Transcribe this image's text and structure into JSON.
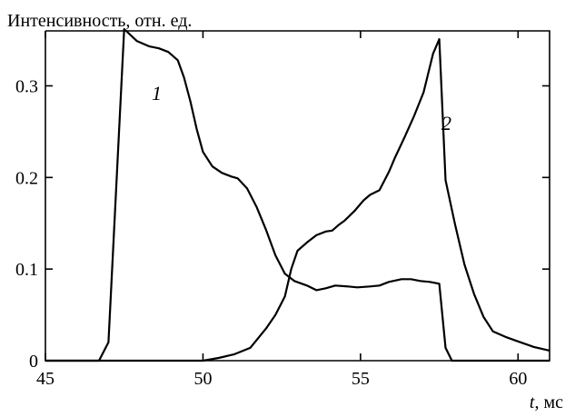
{
  "chart_data": {
    "type": "line",
    "title": "",
    "ylabel": "Интенсивность, отн. ед.",
    "xlabel_var": "t",
    "xlabel_unit": ", мс",
    "xlim": [
      45,
      61
    ],
    "ylim": [
      0,
      0.36
    ],
    "xticks": [
      45,
      50,
      55,
      60
    ],
    "xtick_labels": [
      "45",
      "50",
      "55",
      "60"
    ],
    "yticks": [
      0,
      0.1,
      0.2,
      0.3
    ],
    "ytick_labels": [
      "0",
      "0.1",
      "0.2",
      "0.3"
    ],
    "grid": false,
    "series": [
      {
        "name": "1",
        "x": [
          45.0,
          46.7,
          47.0,
          47.5,
          47.9,
          48.3,
          48.6,
          48.9,
          49.2,
          49.4,
          49.6,
          49.8,
          50.0,
          50.3,
          50.6,
          50.9,
          51.1,
          51.4,
          51.7,
          52.0,
          52.3,
          52.6,
          52.9,
          53.3,
          53.6,
          53.9,
          54.2,
          54.6,
          54.9,
          55.3,
          55.6,
          55.9,
          56.3,
          56.6,
          56.9,
          57.2,
          57.5,
          57.7,
          57.9,
          58.2,
          58.6,
          61.0
        ],
        "y": [
          0.0,
          0.0,
          0.02,
          0.362,
          0.349,
          0.343,
          0.341,
          0.337,
          0.328,
          0.309,
          0.283,
          0.253,
          0.228,
          0.212,
          0.205,
          0.201,
          0.199,
          0.188,
          0.168,
          0.143,
          0.115,
          0.095,
          0.087,
          0.082,
          0.077,
          0.079,
          0.082,
          0.081,
          0.08,
          0.081,
          0.082,
          0.086,
          0.089,
          0.089,
          0.087,
          0.086,
          0.084,
          0.014,
          0.0,
          0.0,
          0.0,
          0.0
        ]
      },
      {
        "name": "2",
        "x": [
          45.0,
          47.5,
          48.5,
          49.5,
          50.0,
          50.5,
          51.0,
          51.5,
          52.0,
          52.3,
          52.6,
          52.8,
          53.0,
          53.3,
          53.6,
          53.9,
          54.1,
          54.3,
          54.5,
          54.8,
          55.1,
          55.3,
          55.6,
          55.9,
          56.1,
          56.4,
          56.7,
          57.0,
          57.3,
          57.5,
          57.7,
          58.0,
          58.3,
          58.6,
          58.9,
          59.2,
          59.6,
          60.0,
          60.5,
          61.0
        ],
        "y": [
          0.0,
          0.0,
          0.0,
          0.0,
          0.0,
          0.003,
          0.007,
          0.014,
          0.035,
          0.05,
          0.07,
          0.1,
          0.12,
          0.129,
          0.137,
          0.141,
          0.142,
          0.148,
          0.153,
          0.163,
          0.175,
          0.181,
          0.186,
          0.206,
          0.222,
          0.244,
          0.267,
          0.293,
          0.335,
          0.351,
          0.197,
          0.149,
          0.105,
          0.073,
          0.048,
          0.032,
          0.026,
          0.021,
          0.015,
          0.011
        ]
      }
    ]
  }
}
